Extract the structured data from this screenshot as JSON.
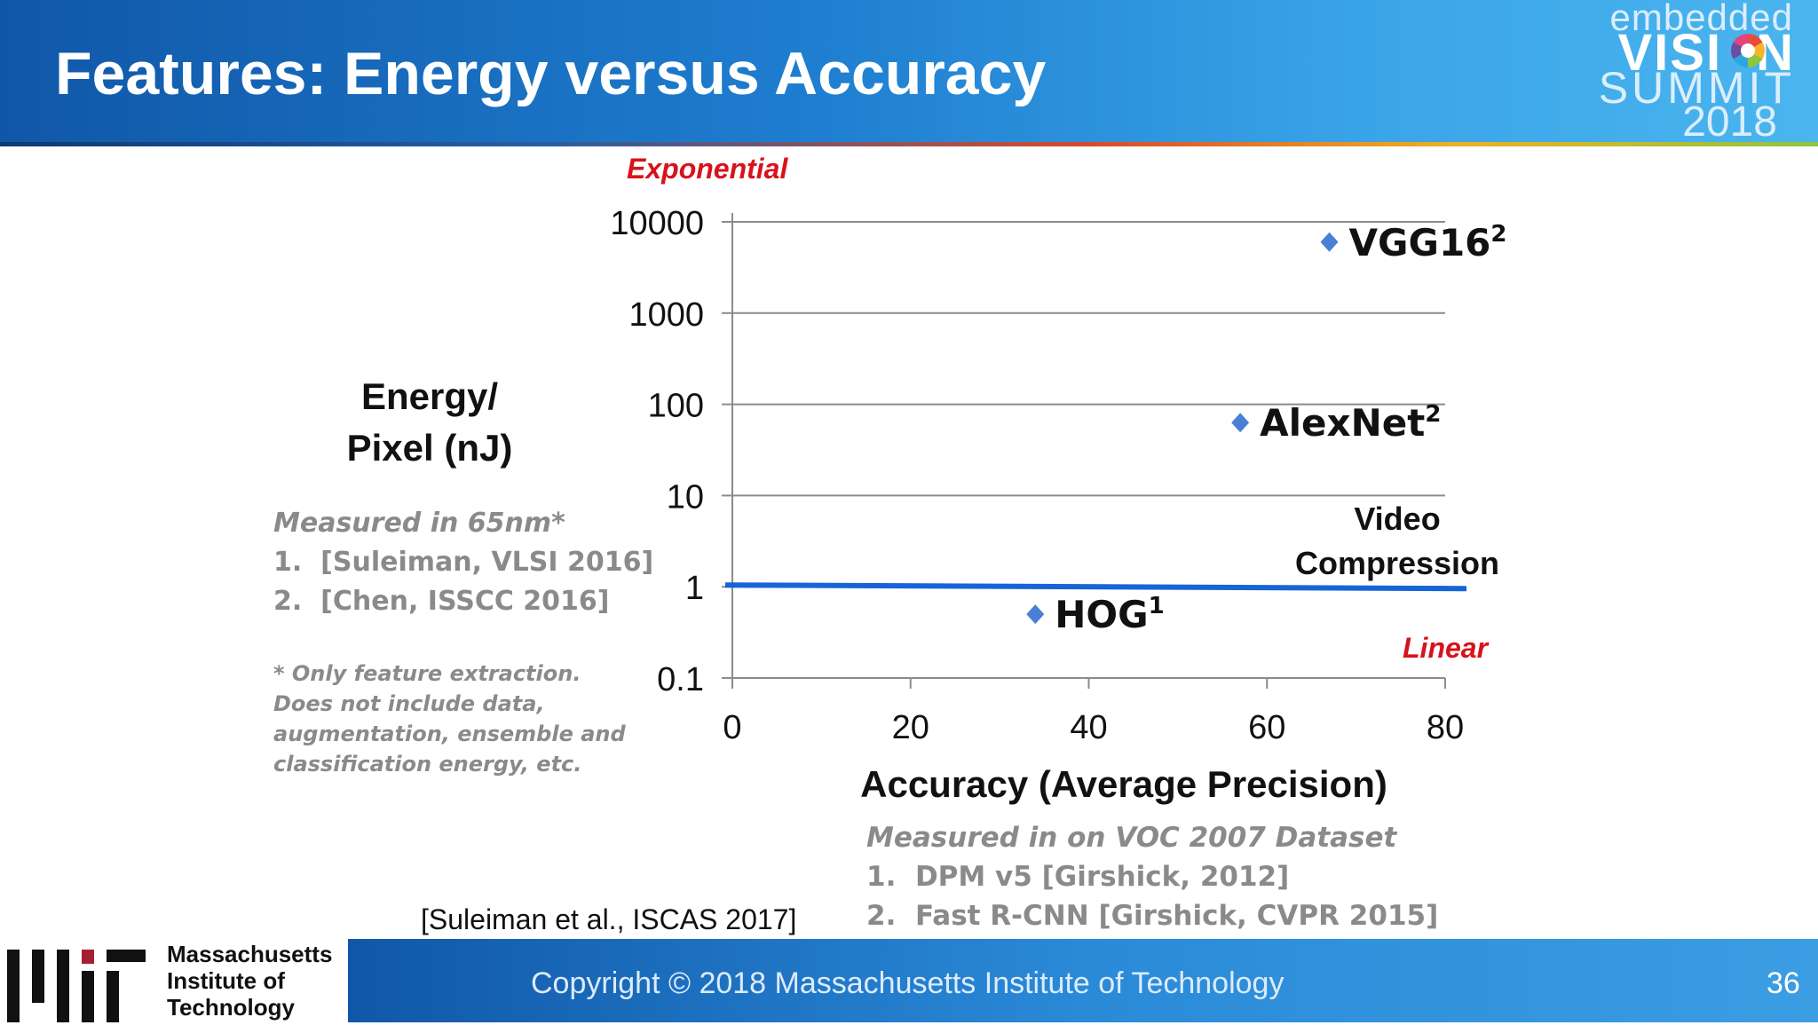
{
  "slide": {
    "title": "Features: Energy versus Accuracy",
    "page_number": "36",
    "copyright": "Copyright © 2018 Massachusetts Institute of Technology",
    "citation": "[Suleiman et al., ISCAS 2017]"
  },
  "logo": {
    "line1": "embedded",
    "line2": "VISI",
    "line2b": "N",
    "line3": "SUMMIT",
    "line4": "2018"
  },
  "institution": {
    "line1": "Massachusetts",
    "line2": "Institute of",
    "line3": "Technology"
  },
  "notes": {
    "energy_measured": "Measured in 65nm*",
    "energy_refs": [
      "[Suleiman, VLSI 2016]",
      "[Chen, ISSCC 2016]"
    ],
    "footnote": "* Only feature extraction. Does not include data, augmentation, ensemble and classification energy, etc.",
    "accuracy_measured": "Measured in on VOC 2007 Dataset",
    "accuracy_refs": [
      "DPM v5 [Girshick, 2012]",
      "Fast R-CNN [Girshick, CVPR 2015]"
    ]
  },
  "chart_data": {
    "type": "scatter",
    "xlabel": "Accuracy (Average Precision)",
    "ylabel": "Energy/ Pixel (nJ)",
    "ylabel_lines": [
      "Energy/",
      "Pixel (nJ)"
    ],
    "x_ticks": [
      "0",
      "20",
      "40",
      "60",
      "80"
    ],
    "y_ticks": [
      "0.1",
      "1",
      "10",
      "100",
      "1000",
      "10000"
    ],
    "xlim": [
      0,
      80
    ],
    "ylim": [
      0.1,
      10000
    ],
    "y_scale": "log",
    "grid": "horizontal",
    "marker_color": "#4a7fd6",
    "points": [
      {
        "name": "HOG",
        "sup": "1",
        "x": 34,
        "y": 0.5
      },
      {
        "name": "AlexNet",
        "sup": "2",
        "x": 57,
        "y": 63
      },
      {
        "name": "VGG16",
        "sup": "2",
        "x": 67,
        "y": 6000
      }
    ],
    "reference_line": {
      "label_lines": [
        "Video",
        "Compression"
      ],
      "y": 1,
      "color": "#1565d8"
    },
    "annotations": {
      "top": "Exponential",
      "bottom": "Linear"
    }
  }
}
